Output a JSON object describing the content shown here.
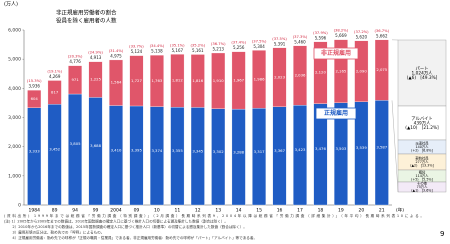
{
  "chart_data": {
    "type": "stacked-bar",
    "unit_label": "(万人)",
    "x_unit_label": "(年)",
    "ratio_title": "非正規雇用労働者の割合",
    "total_title": "役員を除く雇用者の人数",
    "categories": [
      "1984",
      "89",
      "94",
      "99",
      "2004",
      "09",
      "10",
      "11",
      "12",
      "13",
      "14",
      "15",
      "16",
      "17",
      "18",
      "19",
      "20",
      "21"
    ],
    "series": [
      {
        "name": "正規雇用",
        "color": "#1f5cc4",
        "values": [
          3333,
          3452,
          3805,
          3688,
          3410,
          3395,
          3374,
          3355,
          3345,
          3302,
          3288,
          3317,
          3367,
          3423,
          3476,
          3503,
          3539,
          3587
        ],
        "value_labels": [
          "3,333",
          "3,452",
          "3,805",
          "3,688",
          "3,410",
          "3,395",
          "3,374",
          "3,355",
          "3,345",
          "3,302",
          "3,288",
          "3,317",
          "3,367",
          "3,423",
          "3,476",
          "3,503",
          "3,539",
          "3,587"
        ]
      },
      {
        "name": "非正規雇用",
        "color": "#e0566a",
        "values": [
          604,
          817,
          971,
          1225,
          1564,
          1727,
          1763,
          1812,
          1816,
          1910,
          1967,
          1986,
          2023,
          2036,
          2120,
          2165,
          2090,
          2075
        ],
        "value_labels": [
          "604",
          "817",
          "971",
          "1,225",
          "1,564",
          "1,727",
          "1,763",
          "1,812",
          "1,816",
          "1,910",
          "1,967",
          "1,986",
          "2,023",
          "2,036",
          "2,120",
          "2,165",
          "2,090",
          "2,075"
        ]
      }
    ],
    "totals": [
      3936,
      4269,
      4776,
      4913,
      4975,
      5124,
      5138,
      5167,
      5161,
      5213,
      5256,
      5304,
      5391,
      5460,
      5596,
      5669,
      5620,
      5662
    ],
    "totals_labels": [
      "3,936",
      "4,269",
      "4,776",
      "4,913",
      "4,975",
      "5,124",
      "5,138",
      "5,167",
      "5,161",
      "5,213",
      "5,256",
      "5,304",
      "5,391",
      "5,460",
      "5,596",
      "5,669",
      "5,620",
      "5,662"
    ],
    "ratios": [
      15.3,
      19.1,
      20.3,
      24.9,
      31.4,
      33.7,
      34.4,
      35.1,
      35.2,
      36.7,
      37.4,
      37.5,
      37.5,
      37.3,
      37.9,
      38.2,
      37.2,
      36.7
    ],
    "ratios_labels": [
      "(15.3%)",
      "(19.1%)",
      "(20.3%)",
      "(24.9%)",
      "(31.4%)",
      "(33.7%)",
      "(34.4%)",
      "(35.1%)",
      "(35.2%)",
      "(36.7%)",
      "(37.4%)",
      "(37.5%)",
      "(37.5%)",
      "(37.3%)",
      "(37.9%)",
      "(38.2%)",
      "(37.2%)",
      "(36.7%)"
    ],
    "ylim": [
      0,
      6000
    ],
    "yticks": [
      0,
      {
        "value": 1000,
        "label": "1,000"
      },
      {
        "value": 2000,
        "label": "2,000"
      },
      {
        "value": 3000,
        "label": "3,000"
      },
      {
        "value": 4000,
        "label": "4,000"
      },
      {
        "value": 5000,
        "label": "5,000"
      },
      {
        "value": 6000,
        "label": "6,000"
      }
    ],
    "breakdown": [
      {
        "name": "パート",
        "amount": "1,024万人",
        "detail": "(▲6)　[49.3%]",
        "color": "#f2f2f2"
      },
      {
        "name": "アルバイト",
        "amount": "439万人",
        "detail": "(▲10)　[21.2%]",
        "color": "#ffffff"
      },
      {
        "name": "派遣社員",
        "amount": "140万人",
        "detail": "(+2)　[6.8%]",
        "color": "#e6eef9"
      },
      {
        "name": "契約社員",
        "amount": "277万人",
        "detail": "(▲2)　[13.3%]",
        "color": "#fdf1d8"
      },
      {
        "name": "嘱託",
        "amount": "114万人",
        "detail": "(+5)　[5.5%]",
        "color": "#eaf5e4"
      },
      {
        "name": "その他",
        "amount": "75万人",
        "detail": "(▲1)　[3.6%]",
        "color": "#f3eaf7"
      }
    ],
    "notes": [
      "(資料出所) 1999年までは総務省「労働力調査（特別調査）」（2月調査）長期時系列表9、2004年以降は総務省「労働力調査（詳細集計）」（年平均）長期時系列表10による。",
      "(注) 1）2005年から2009年までの数値は、2010年国勢調査の確定人口に基づく推計人口の切替による遡及集計した数値（割合は除く）。",
      "　　 2）2010年から2016年までの数値は、2015年国勢調査の確定人口に基づく推計人口（新基準）の切替による遡及集計した数値（割合は除く）。",
      "　　 3）雇用形態の区分は、勤め先での「呼称」によるもの。",
      "　　 4）正規雇用労働者：勤め先での呼称が「正規の職員・従業員」である者。非正規雇用労働者：勤め先での呼称が「パート」「アルバイト」等である者。"
    ],
    "page_number": "9"
  }
}
